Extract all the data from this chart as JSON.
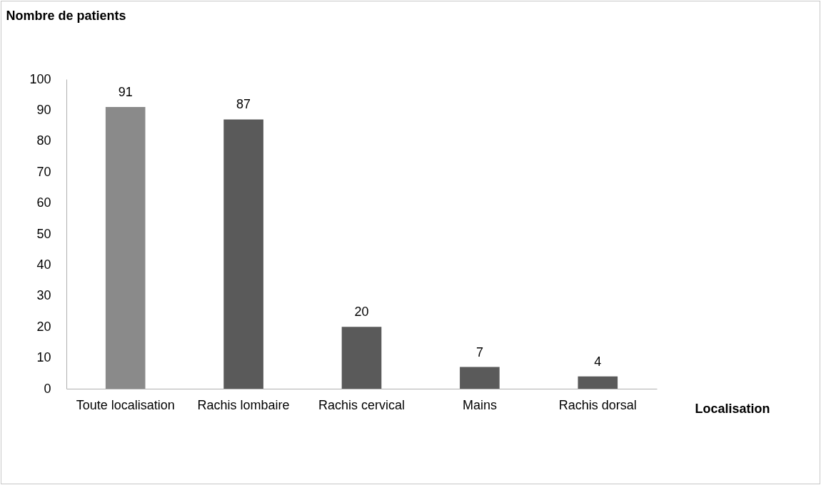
{
  "chart_data": {
    "type": "bar",
    "xlabel": "Localisation",
    "ylabel": "Nombre de patients",
    "categories": [
      "Toute localisation",
      "Rachis lombaire",
      "Rachis cervical",
      "Mains",
      "Rachis dorsal"
    ],
    "values": [
      91,
      87,
      20,
      7,
      4
    ],
    "colors": [
      "#8a8a8a",
      "#5a5a5a",
      "#5a5a5a",
      "#5a5a5a",
      "#5a5a5a"
    ],
    "ylim": [
      0,
      100
    ],
    "yticks": [
      0,
      10,
      20,
      30,
      40,
      50,
      60,
      70,
      80,
      90,
      100
    ],
    "data_labels": true,
    "grid": false
  }
}
